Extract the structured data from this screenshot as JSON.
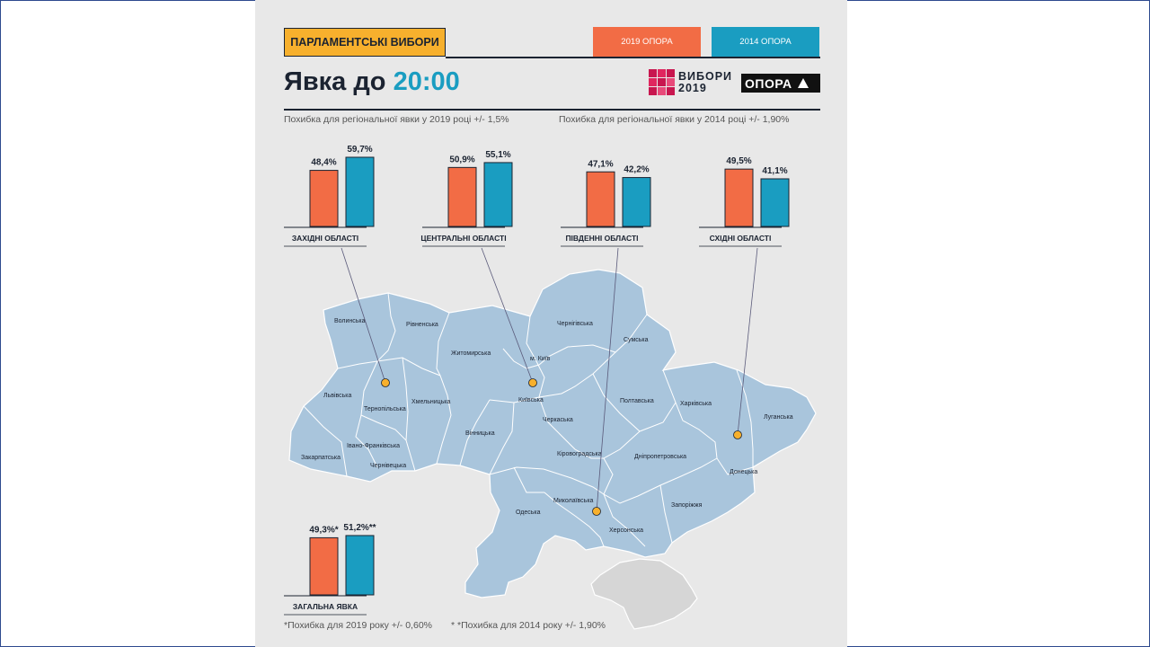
{
  "header": {
    "section_tag": "ПАРЛАМЕНТСЬКІ ВИБОРИ",
    "legend_2019": "2019 ОПОРА",
    "legend_2014": "2014 ОПОРА",
    "title_prefix": "Явка до ",
    "title_time": "20:00",
    "logo_vybory_line1": "ВИБОРИ",
    "logo_vybory_line2": "2019",
    "logo_opora": "ОПОРА"
  },
  "notes": {
    "error_2019": "Похибка для регіональної явки у 2019 році +/- 1,5%",
    "error_2014": "Похибка для регіональної явки у 2014 році +/- 1,90%",
    "footnote_2019": "*Похибка для 2019  року +/- 0,60%",
    "footnote_2014": "* *Похибка для 2014  року +/- 1,90%"
  },
  "colors": {
    "y2019": "#f26c45",
    "y2014": "#1a9dc1",
    "accent": "#f7b02d",
    "map_fill": "#a9c5dc",
    "crimea_fill": "#d6d6d6"
  },
  "chart_data": [
    {
      "type": "bar",
      "title": "ЗАХІДНІ ОБЛАСТІ",
      "categories": [
        "2019",
        "2014"
      ],
      "values": [
        48.4,
        59.7
      ],
      "labels": [
        "48,4%",
        "59,7%"
      ]
    },
    {
      "type": "bar",
      "title": "ЦЕНТРАЛЬНІ ОБЛАСТІ",
      "categories": [
        "2019",
        "2014"
      ],
      "values": [
        50.9,
        55.1
      ],
      "labels": [
        "50,9%",
        "55,1%"
      ]
    },
    {
      "type": "bar",
      "title": "ПІВДЕННІ ОБЛАСТІ",
      "categories": [
        "2019",
        "2014"
      ],
      "values": [
        47.1,
        42.2
      ],
      "labels": [
        "47,1%",
        "42,2%"
      ]
    },
    {
      "type": "bar",
      "title": "СХІДНІ ОБЛАСТІ",
      "categories": [
        "2019",
        "2014"
      ],
      "values": [
        49.5,
        41.1
      ],
      "labels": [
        "49,5%",
        "41,1%"
      ]
    },
    {
      "type": "bar",
      "title": "ЗАГАЛЬНА ЯВКА",
      "categories": [
        "2019",
        "2014"
      ],
      "values": [
        49.3,
        51.2
      ],
      "labels": [
        "49,3%*",
        "51,2%**"
      ]
    }
  ],
  "map": {
    "regions": [
      "Волинська",
      "Рівненська",
      "Львівська",
      "Тернопільська",
      "Хмельницька",
      "Івано-Франківська",
      "Закарпатська",
      "Чернівецька",
      "Житомирська",
      "м. Київ",
      "Київська",
      "Чернігівська",
      "Сумська",
      "Вінницька",
      "Черкаська",
      "Полтавська",
      "Харківська",
      "Луганська",
      "Кіровоградська",
      "Дніпропетровська",
      "Донецька",
      "Миколаївська",
      "Одеська",
      "Херсонська",
      "Запоріжжя"
    ]
  }
}
